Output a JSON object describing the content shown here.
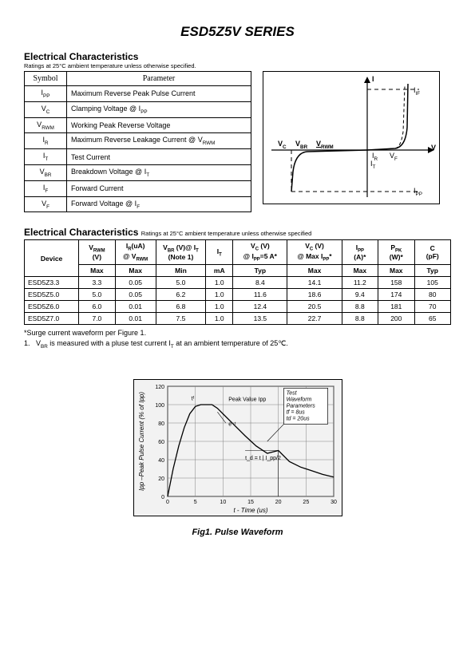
{
  "title": "ESD5Z5V SERIES",
  "section1": {
    "heading": "Electrical Characteristics",
    "subnote": "Ratings at 25°C ambient temperature unless otherwise specified.",
    "columns": [
      "Symbol",
      "Parameter"
    ],
    "rows": [
      {
        "sym": "I",
        "sub": "PP",
        "param": "Maximum Reverse Peak Pulse Current"
      },
      {
        "sym": "V",
        "sub": "C",
        "param": "Clamping Voltage @ I",
        "psub": "PP"
      },
      {
        "sym": "V",
        "sub": "RWM",
        "param": "Working Peak Reverse Voltage"
      },
      {
        "sym": "I",
        "sub": "R",
        "param": "Maximum Reverse Leakage Current @ V",
        "psub": "RWM"
      },
      {
        "sym": "I",
        "sub": "T",
        "param": "Test Current"
      },
      {
        "sym": "V",
        "sub": "BR",
        "param": "Breakdown Voltage @ I",
        "psub": "T"
      },
      {
        "sym": "I",
        "sub": "F",
        "param": "Forward Current"
      },
      {
        "sym": "V",
        "sub": "F",
        "param": "Forward Voltage @ I",
        "psub": "F"
      }
    ]
  },
  "iv_curve": {
    "axis_i": "I",
    "axis_v": "V",
    "labels": {
      "IF": "IF",
      "VC": "VC",
      "VBR": "VBR",
      "VRWM": "VRWM",
      "IR": "IR",
      "VF": "VF",
      "IT": "IT",
      "IPP": "IPP"
    },
    "axis_color": "#000000",
    "curve_color": "#000000",
    "background": "#ffffff"
  },
  "section2": {
    "heading": "Electrical Characteristics",
    "subnote": "Ratings at 25°C ambient temperature unless otherwise specified",
    "headers_top": [
      "Device",
      "V_RWM (V)",
      "I_R(uA) @ V_RWM",
      "V_BR (V)@ I_T (Note 1)",
      "I_T",
      "V_C (V) @ I_PP=5 A*",
      "V_C (V) @ Max I_PP*",
      "I_PP (A)*",
      "P_PK (W)*",
      "C (pF)"
    ],
    "headers_bot": [
      "",
      "Max",
      "Max",
      "Min",
      "mA",
      "Typ",
      "Max",
      "Max",
      "Max",
      "Typ"
    ],
    "rows": [
      [
        "ESD5Z3.3",
        "3.3",
        "0.05",
        "5.0",
        "1.0",
        "8.4",
        "14.1",
        "11.2",
        "158",
        "105"
      ],
      [
        "ESD5Z5.0",
        "5.0",
        "0.05",
        "6.2",
        "1.0",
        "11.6",
        "18.6",
        "9.4",
        "174",
        "80"
      ],
      [
        "ESD5Z6.0",
        "6.0",
        "0.01",
        "6.8",
        "1.0",
        "12.4",
        "20.5",
        "8.8",
        "181",
        "70"
      ],
      [
        "ESD5Z7.0",
        "7.0",
        "0.01",
        "7.5",
        "1.0",
        "13.5",
        "22.7",
        "8.8",
        "200",
        "65"
      ]
    ],
    "col_widths_pct": [
      12,
      8,
      9,
      11,
      6,
      12,
      12,
      8,
      8,
      8
    ]
  },
  "footnotes": {
    "surge": "*Surge current waveform per Figure 1.",
    "note1_prefix": "1.",
    "note1": "V_BR is measured with a pluse test current I_T at an ambient temperature of 25℃."
  },
  "figure": {
    "caption": "Fig1. Pulse Waveform",
    "x_label": "t - Time (us)",
    "y_label": "Ipp –Peak Pulse Current (% of Ipp)",
    "x_ticks": [
      0,
      5,
      10,
      15,
      20,
      25,
      30
    ],
    "y_ticks": [
      0,
      20,
      40,
      60,
      80,
      100,
      120
    ],
    "xlim": [
      0,
      30
    ],
    "ylim": [
      0,
      120
    ],
    "curve": [
      [
        0,
        0
      ],
      [
        1,
        30
      ],
      [
        2,
        55
      ],
      [
        3,
        75
      ],
      [
        4,
        90
      ],
      [
        5,
        98
      ],
      [
        6,
        100
      ],
      [
        7,
        100
      ],
      [
        8,
        100
      ],
      [
        9,
        96
      ],
      [
        10,
        90
      ],
      [
        12,
        78
      ],
      [
        14,
        66
      ],
      [
        16,
        55
      ],
      [
        18,
        47
      ],
      [
        20,
        50
      ],
      [
        22,
        38
      ],
      [
        24,
        32
      ],
      [
        26,
        28
      ],
      [
        28,
        24
      ],
      [
        30,
        21
      ]
    ],
    "peak_label": "Peak Value Ipp",
    "exp_label": "e⁻ᵗ",
    "td_label": "t_d = t | I_pp/2",
    "box_lines": [
      "Test",
      "Waveform",
      "Parameters",
      "t_f = 8us",
      "t_d = 20us"
    ],
    "line_color": "#000000",
    "grid_color": "#808080",
    "plot_bg": "#f2f2f2",
    "font_size": 7
  }
}
